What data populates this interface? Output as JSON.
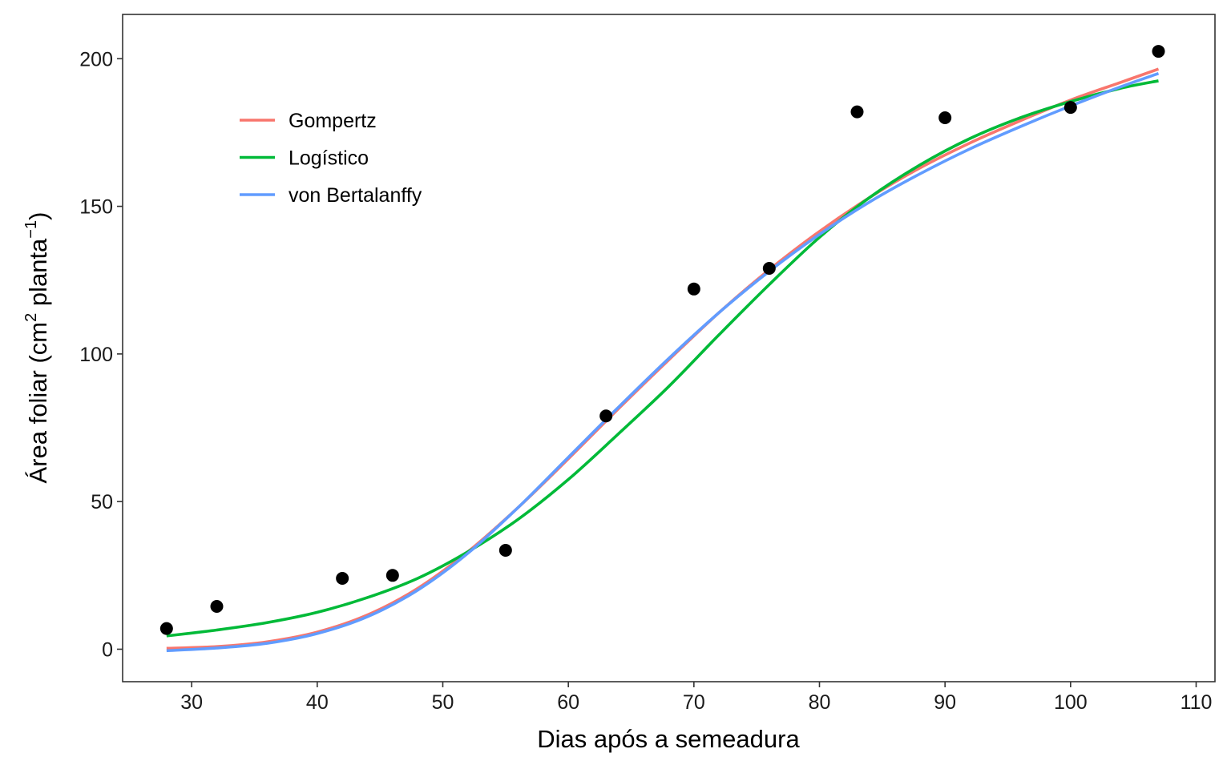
{
  "chart_data": {
    "type": "scatter",
    "xlabel": "Dias após a semeadura",
    "ylabel": {
      "prefix": "Área foliar (cm",
      "sup1": "2",
      "middle": " planta",
      "sup2": "−1",
      "suffix": ")"
    },
    "xlim": [
      24.5,
      111.5
    ],
    "ylim": [
      -11,
      215
    ],
    "x_ticks": [
      30,
      40,
      50,
      60,
      70,
      80,
      90,
      100,
      110
    ],
    "y_ticks": [
      0,
      50,
      100,
      150,
      200
    ],
    "legend_position": "top-left",
    "grid": false,
    "observed": {
      "x": [
        28,
        32,
        42,
        46,
        55,
        63,
        70,
        76,
        83,
        90,
        100,
        107
      ],
      "y": [
        7,
        14.5,
        24,
        25,
        33.5,
        79,
        122,
        129,
        182,
        180,
        183.5,
        202.5
      ]
    },
    "series": [
      {
        "name": "Gompertz",
        "color": "#F8766D",
        "x": [
          28,
          32,
          36,
          40,
          44,
          48,
          52,
          56,
          60,
          64,
          68,
          72,
          76,
          80,
          84,
          88,
          92,
          96,
          100,
          104,
          107
        ],
        "y": [
          0.3,
          0.9,
          2.5,
          5.8,
          11.6,
          20.6,
          33,
          48,
          64.5,
          81.5,
          98,
          114,
          128.5,
          141.5,
          153,
          163,
          171.5,
          179,
          186,
          192,
          196.5
        ]
      },
      {
        "name": "Logístico",
        "color": "#00BA38",
        "x": [
          28,
          32,
          36,
          40,
          44,
          48,
          52,
          56,
          60,
          64,
          68,
          72,
          76,
          80,
          84,
          88,
          92,
          96,
          100,
          104,
          107
        ],
        "y": [
          4.5,
          6.5,
          9,
          12.5,
          17.5,
          24,
          33,
          44,
          57.5,
          73,
          89,
          106.5,
          123.5,
          139.5,
          153,
          164,
          173,
          180,
          185.5,
          190,
          192.5
        ]
      },
      {
        "name": "von Bertalanffy",
        "color": "#619CFF",
        "x": [
          28,
          32,
          36,
          40,
          44,
          48,
          52,
          56,
          60,
          64,
          68,
          72,
          76,
          80,
          84,
          88,
          92,
          96,
          100,
          104,
          107
        ],
        "y": [
          -0.5,
          0.4,
          2,
          5.3,
          11,
          20,
          32.5,
          48,
          65,
          82,
          98.5,
          114,
          128,
          140.5,
          151.5,
          161,
          169.5,
          177,
          184,
          190.5,
          195
        ]
      }
    ]
  }
}
